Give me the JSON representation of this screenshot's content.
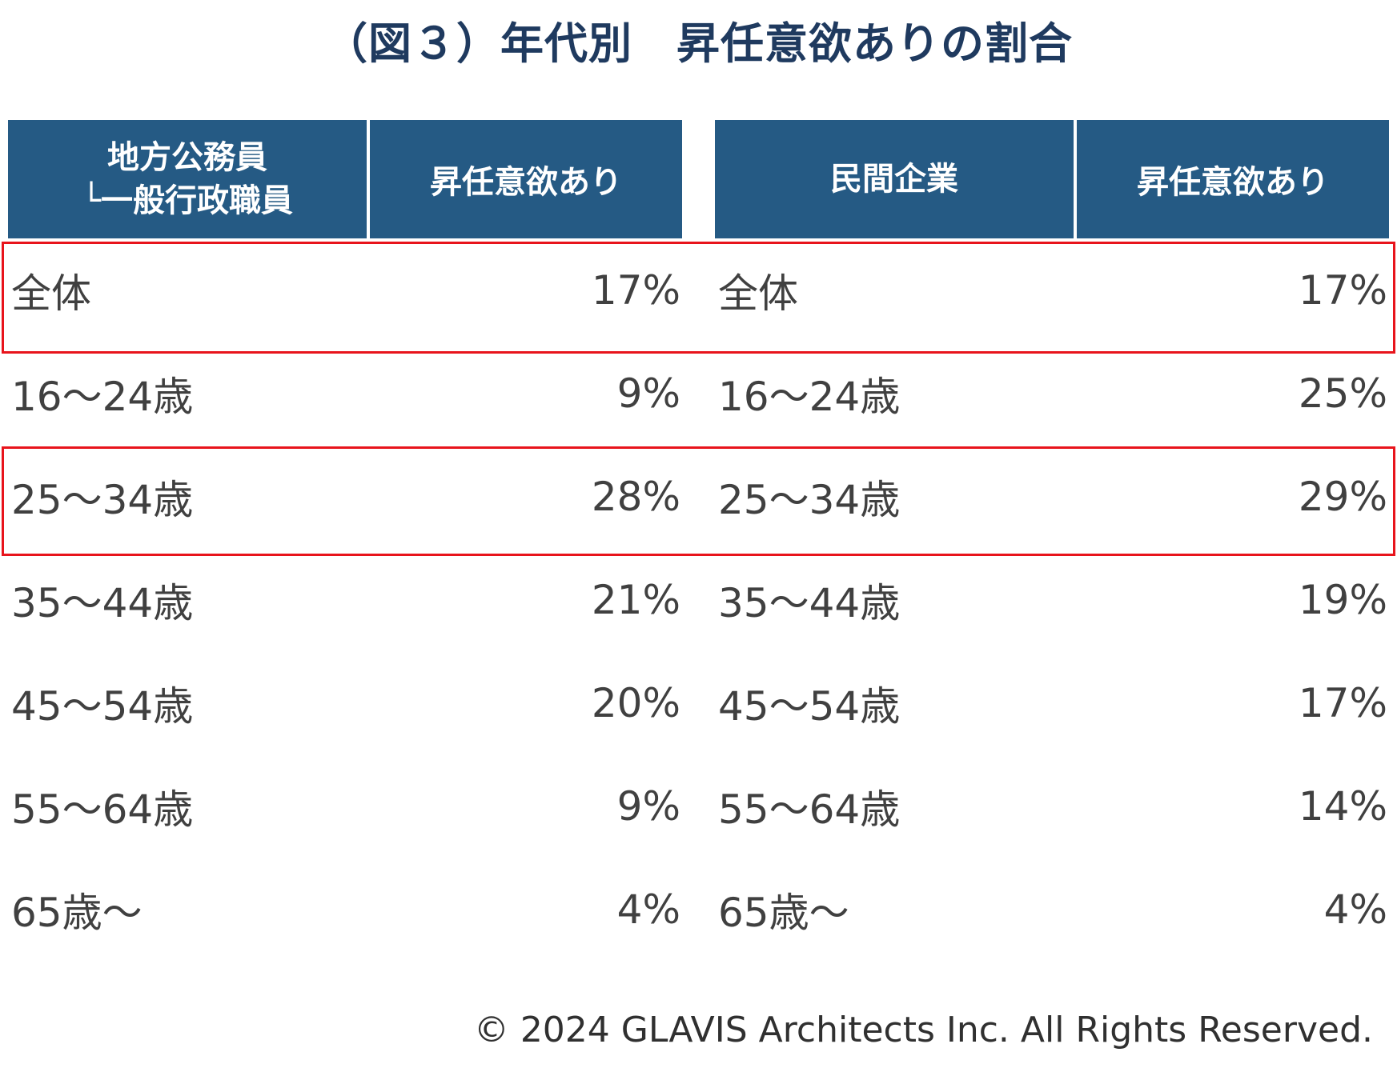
{
  "title": "（図３）年代別　昇任意欲ありの割合",
  "chart_data": {
    "type": "table",
    "title": "（図３）年代別　昇任意欲ありの割合",
    "tables": [
      {
        "header": {
          "category_line1": "地方公務員",
          "category_line2": "└一般行政職員",
          "value": "昇任意欲あり"
        },
        "rows": [
          {
            "label": "全体",
            "value": "17%"
          },
          {
            "label": "16～24歳",
            "value": "9%"
          },
          {
            "label": "25～34歳",
            "value": "28%"
          },
          {
            "label": "35～44歳",
            "value": "21%"
          },
          {
            "label": "45～54歳",
            "value": "20%"
          },
          {
            "label": "55～64歳",
            "value": "9%"
          },
          {
            "label": "65歳～",
            "value": "4%"
          }
        ]
      },
      {
        "header": {
          "category_line1": "民間企業",
          "category_line2": "",
          "value": "昇任意欲あり"
        },
        "rows": [
          {
            "label": "全体",
            "value": "17%"
          },
          {
            "label": "16～24歳",
            "value": "25%"
          },
          {
            "label": "25～34歳",
            "value": "29%"
          },
          {
            "label": "35～44歳",
            "value": "19%"
          },
          {
            "label": "45～54歳",
            "value": "17%"
          },
          {
            "label": "55～64歳",
            "value": "14%"
          },
          {
            "label": "65歳～",
            "value": "4%"
          }
        ]
      }
    ],
    "highlighted_rows": [
      "全体",
      "25～34歳"
    ],
    "colors": {
      "header_bg": "#255a84",
      "highlight": "#e8141c",
      "title": "#1f3a5f"
    }
  },
  "copyright": "© 2024  GLAVIS Architects Inc. All Rights Reserved."
}
